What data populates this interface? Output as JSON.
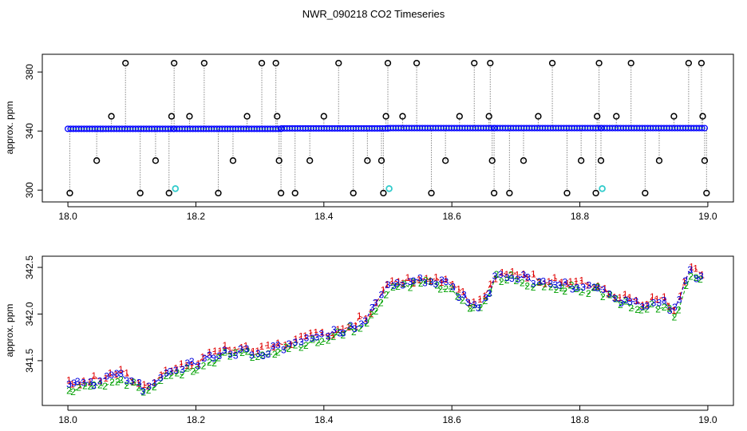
{
  "figure": {
    "title": "NWR_090218  CO2 Timeseries"
  },
  "colors": {
    "flag1": "#e00000",
    "flag2": "#00a000",
    "flag3": "#0000dd",
    "outlier": "#000000",
    "ok": "#0000ff",
    "special": "#33cccc",
    "connector": "#888888"
  },
  "chart_data": [
    {
      "type": "scatter",
      "title": "NWR_090218  CO2 Timeseries",
      "xlabel": "",
      "ylabel": "approx. ppm",
      "xlim": [
        17.96,
        19.04
      ],
      "ylim": [
        292,
        392
      ],
      "xticks": [
        "18.0",
        "18.2",
        "18.4",
        "18.6",
        "18.8",
        "19.0"
      ],
      "yticks": [
        "300",
        "340",
        "380"
      ],
      "baseline_segments": [
        {
          "x0": 18.0,
          "x1": 18.165,
          "y": 341.5
        },
        {
          "x0": 18.166,
          "x1": 18.333,
          "y": 341.5
        },
        {
          "x0": 18.334,
          "x1": 18.5,
          "y": 341.8
        },
        {
          "x0": 18.5,
          "x1": 18.666,
          "y": 342.0
        },
        {
          "x0": 18.667,
          "x1": 18.833,
          "y": 342.0
        },
        {
          "x0": 18.834,
          "x1": 18.995,
          "y": 342.0
        }
      ],
      "outliers": [
        {
          "x": 18.003,
          "y": 298
        },
        {
          "x": 18.045,
          "y": 320
        },
        {
          "x": 18.068,
          "y": 350
        },
        {
          "x": 18.09,
          "y": 386
        },
        {
          "x": 18.113,
          "y": 298
        },
        {
          "x": 18.137,
          "y": 320
        },
        {
          "x": 18.158,
          "y": 298
        },
        {
          "x": 18.162,
          "y": 350
        },
        {
          "x": 18.166,
          "y": 386
        },
        {
          "x": 18.19,
          "y": 350
        },
        {
          "x": 18.213,
          "y": 386
        },
        {
          "x": 18.235,
          "y": 298
        },
        {
          "x": 18.258,
          "y": 320
        },
        {
          "x": 18.28,
          "y": 350
        },
        {
          "x": 18.303,
          "y": 386
        },
        {
          "x": 18.325,
          "y": 386
        },
        {
          "x": 18.327,
          "y": 350
        },
        {
          "x": 18.33,
          "y": 320
        },
        {
          "x": 18.333,
          "y": 298
        },
        {
          "x": 18.355,
          "y": 298
        },
        {
          "x": 18.378,
          "y": 320
        },
        {
          "x": 18.4,
          "y": 350
        },
        {
          "x": 18.423,
          "y": 386
        },
        {
          "x": 18.446,
          "y": 298
        },
        {
          "x": 18.468,
          "y": 320
        },
        {
          "x": 18.49,
          "y": 320
        },
        {
          "x": 18.493,
          "y": 298
        },
        {
          "x": 18.497,
          "y": 350
        },
        {
          "x": 18.5,
          "y": 386
        },
        {
          "x": 18.523,
          "y": 350
        },
        {
          "x": 18.545,
          "y": 386
        },
        {
          "x": 18.568,
          "y": 298
        },
        {
          "x": 18.59,
          "y": 320
        },
        {
          "x": 18.612,
          "y": 350
        },
        {
          "x": 18.635,
          "y": 386
        },
        {
          "x": 18.658,
          "y": 350
        },
        {
          "x": 18.66,
          "y": 386
        },
        {
          "x": 18.663,
          "y": 320
        },
        {
          "x": 18.666,
          "y": 298
        },
        {
          "x": 18.69,
          "y": 298
        },
        {
          "x": 18.712,
          "y": 320
        },
        {
          "x": 18.735,
          "y": 350
        },
        {
          "x": 18.757,
          "y": 386
        },
        {
          "x": 18.78,
          "y": 298
        },
        {
          "x": 18.802,
          "y": 320
        },
        {
          "x": 18.825,
          "y": 298
        },
        {
          "x": 18.827,
          "y": 350
        },
        {
          "x": 18.83,
          "y": 386
        },
        {
          "x": 18.833,
          "y": 320
        },
        {
          "x": 18.857,
          "y": 350
        },
        {
          "x": 18.88,
          "y": 386
        },
        {
          "x": 18.902,
          "y": 298
        },
        {
          "x": 18.924,
          "y": 320
        },
        {
          "x": 18.947,
          "y": 350
        },
        {
          "x": 18.97,
          "y": 386
        },
        {
          "x": 18.99,
          "y": 386
        },
        {
          "x": 18.992,
          "y": 350
        },
        {
          "x": 18.995,
          "y": 320
        },
        {
          "x": 18.998,
          "y": 298
        }
      ],
      "special_points": [
        {
          "x": 18.168,
          "y": 301
        },
        {
          "x": 18.502,
          "y": 301
        },
        {
          "x": 18.835,
          "y": 301
        }
      ]
    },
    {
      "type": "line",
      "title": "",
      "xlabel": "",
      "ylabel": "approx. ppm",
      "xlim": [
        17.96,
        19.04
      ],
      "ylim": [
        341.02,
        342.62
      ],
      "xticks": [
        "18.0",
        "18.2",
        "18.4",
        "18.6",
        "18.8",
        "19.0"
      ],
      "yticks": [
        "341.5",
        "342.0",
        "342.5"
      ],
      "trend_knots": [
        [
          18.0,
          341.22
        ],
        [
          18.05,
          341.28
        ],
        [
          18.08,
          341.35
        ],
        [
          18.12,
          341.2
        ],
        [
          18.15,
          341.35
        ],
        [
          18.2,
          341.46
        ],
        [
          18.25,
          341.6
        ],
        [
          18.3,
          341.58
        ],
        [
          18.35,
          341.68
        ],
        [
          18.4,
          341.75
        ],
        [
          18.45,
          341.88
        ],
        [
          18.47,
          341.98
        ],
        [
          18.5,
          342.28
        ],
        [
          18.55,
          342.36
        ],
        [
          18.6,
          342.3
        ],
        [
          18.63,
          342.08
        ],
        [
          18.65,
          342.1
        ],
        [
          18.67,
          342.42
        ],
        [
          18.7,
          342.4
        ],
        [
          18.75,
          342.32
        ],
        [
          18.8,
          342.3
        ],
        [
          18.83,
          342.28
        ],
        [
          18.86,
          342.15
        ],
        [
          18.9,
          342.1
        ],
        [
          18.93,
          342.12
        ],
        [
          18.95,
          342.02
        ],
        [
          18.97,
          342.45
        ],
        [
          18.99,
          342.4
        ]
      ],
      "series": [
        {
          "name": "1",
          "offset": 0.06,
          "count": 118
        },
        {
          "name": "2",
          "offset": -0.06,
          "count": 118
        },
        {
          "name": "3",
          "offset": 0.0,
          "count": 118
        }
      ]
    }
  ]
}
